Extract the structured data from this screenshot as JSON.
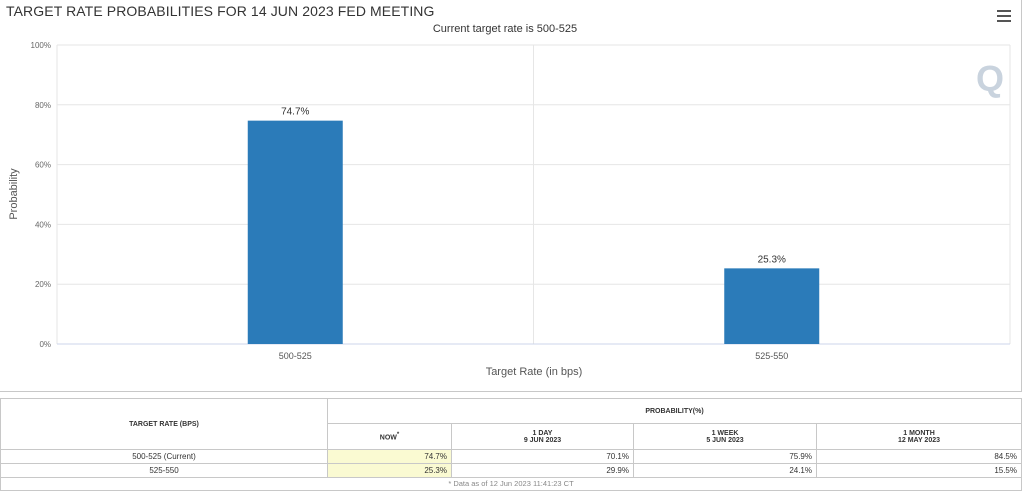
{
  "header": {
    "title": "TARGET RATE PROBABILITIES FOR 14 JUN 2023 FED MEETING",
    "subtitle": "Current target rate is 500-525"
  },
  "chart_data": {
    "type": "bar",
    "title": "TARGET RATE PROBABILITIES FOR 14 JUN 2023 FED MEETING",
    "subtitle": "Current target rate is 500-525",
    "categories": [
      "500-525",
      "525-550"
    ],
    "values": [
      74.7,
      25.3
    ],
    "data_labels": [
      "74.7%",
      "25.3%"
    ],
    "xlabel": "Target Rate (in bps)",
    "ylabel": "Probability",
    "ylim": [
      0,
      100
    ],
    "yticks": [
      "0%",
      "20%",
      "40%",
      "60%",
      "80%",
      "100%"
    ],
    "ytick_values": [
      0,
      20,
      40,
      60,
      80,
      100
    ],
    "grid": true,
    "legend": "none",
    "bar_color": "#2b7bb9"
  },
  "table": {
    "target_rate_header": "TARGET RATE (BPS)",
    "probability_header": "PROBABILITY(%)",
    "columns": [
      {
        "label": "NOW",
        "sup": "*",
        "sub": ""
      },
      {
        "label": "1 DAY",
        "sub": "9 JUN 2023"
      },
      {
        "label": "1 WEEK",
        "sub": "5 JUN 2023"
      },
      {
        "label": "1 MONTH",
        "sub": "12 MAY 2023"
      }
    ],
    "rows": [
      {
        "rate": "500-525 (Current)",
        "now": "74.7%",
        "day": "70.1%",
        "week": "75.9%",
        "month": "84.5%"
      },
      {
        "rate": "525-550",
        "now": "25.3%",
        "day": "29.9%",
        "week": "24.1%",
        "month": "15.5%"
      }
    ],
    "footnote": "* Data as of 12 Jun 2023 11:41:23 CT"
  },
  "icons": {
    "menu": "hamburger-menu-icon",
    "logo": "quikstrike-logo-icon"
  }
}
